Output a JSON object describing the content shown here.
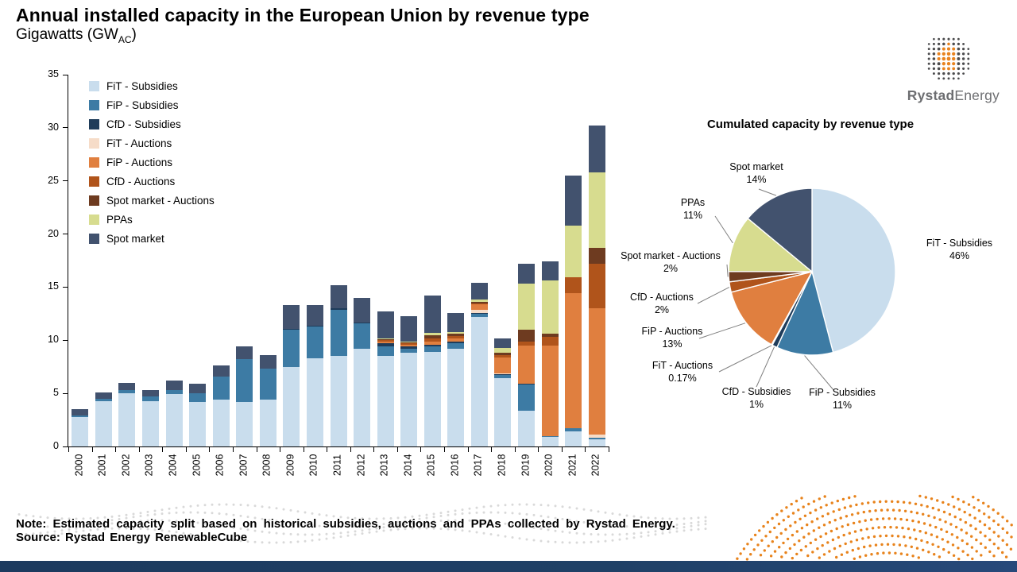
{
  "title": "Annual installed capacity in the European Union by revenue type",
  "subtitle": {
    "prefix": "Gigawatts (GW",
    "subscript": "AC",
    "suffix": ")"
  },
  "brand": {
    "bold": "Rystad",
    "regular": "Energy"
  },
  "note_line": "Note: Estimated capacity split based on historical subsidies, auctions and PPAs collected by Rystad Energy.",
  "source_line": "Source: Rystad Energy RenewableCube",
  "chart_data": [
    {
      "type": "bar",
      "stacked": true,
      "unit": "GW",
      "ylim": [
        0,
        35
      ],
      "yticks": [
        0,
        5,
        10,
        15,
        20,
        25,
        30,
        35
      ],
      "legend_position": "upper-left-inside",
      "categories": [
        "2000",
        "2001",
        "2002",
        "2003",
        "2004",
        "2005",
        "2006",
        "2007",
        "2008",
        "2009",
        "2010",
        "2011",
        "2012",
        "2013",
        "2014",
        "2015",
        "2016",
        "2017",
        "2018",
        "2019",
        "2020",
        "2021",
        "2022"
      ],
      "series": [
        {
          "name": "FiT - Subsidies",
          "color": "#c9dded",
          "values": [
            2.8,
            4.3,
            5.0,
            4.3,
            4.9,
            4.2,
            4.4,
            4.2,
            4.4,
            7.5,
            8.3,
            8.5,
            9.2,
            8.5,
            8.8,
            8.9,
            9.2,
            12.2,
            6.4,
            3.4,
            0.9,
            1.4,
            0.7
          ]
        },
        {
          "name": "FiP - Subsidies",
          "color": "#3d7ba4",
          "values": [
            0.1,
            0.2,
            0.3,
            0.4,
            0.4,
            0.8,
            2.2,
            4.0,
            2.9,
            3.5,
            3.0,
            4.4,
            2.4,
            0.9,
            0.4,
            0.5,
            0.5,
            0.3,
            0.3,
            2.4,
            0.1,
            0.3,
            0.1
          ]
        },
        {
          "name": "CfD - Subsidies",
          "color": "#1f3c5a",
          "values": [
            0,
            0,
            0,
            0,
            0,
            0,
            0,
            0,
            0,
            0.1,
            0.1,
            0.1,
            0.1,
            0.3,
            0.2,
            0.2,
            0.2,
            0.1,
            0.1,
            0.1,
            0,
            0,
            0
          ]
        },
        {
          "name": "FiT - Auctions",
          "color": "#f6dcc8",
          "values": [
            0,
            0,
            0,
            0,
            0,
            0,
            0,
            0,
            0,
            0,
            0,
            0,
            0,
            0,
            0,
            0,
            0,
            0.3,
            0.1,
            0,
            0,
            0,
            0.3
          ]
        },
        {
          "name": "FiP - Auctions",
          "color": "#e07f3f",
          "values": [
            0,
            0,
            0,
            0,
            0,
            0,
            0,
            0,
            0,
            0,
            0,
            0,
            0,
            0.2,
            0.2,
            0.3,
            0.3,
            0.5,
            1.5,
            3.6,
            8.5,
            12.7,
            11.9
          ]
        },
        {
          "name": "CfD - Auctions",
          "color": "#b0541b",
          "values": [
            0,
            0,
            0,
            0,
            0,
            0,
            0,
            0,
            0,
            0,
            0,
            0,
            0,
            0.1,
            0.1,
            0.3,
            0.2,
            0.1,
            0.2,
            0.4,
            0.8,
            1.5,
            4.2
          ]
        },
        {
          "name": "Spot market - Auctions",
          "color": "#6e3b20",
          "values": [
            0,
            0,
            0,
            0,
            0,
            0,
            0,
            0,
            0,
            0,
            0,
            0,
            0,
            0.1,
            0.1,
            0.3,
            0.2,
            0.1,
            0.2,
            1.1,
            0.3,
            0,
            1.5
          ]
        },
        {
          "name": "PPAs",
          "color": "#d7dc8f",
          "values": [
            0,
            0,
            0,
            0,
            0,
            0,
            0,
            0,
            0,
            0,
            0,
            0,
            0,
            0.1,
            0.1,
            0.2,
            0.2,
            0.2,
            0.5,
            4.3,
            5.0,
            4.9,
            7.1
          ]
        },
        {
          "name": "Spot market",
          "color": "#42526e",
          "values": [
            0.6,
            0.6,
            0.7,
            0.6,
            0.9,
            0.9,
            1.0,
            1.2,
            1.3,
            2.2,
            1.9,
            2.2,
            2.3,
            2.5,
            2.4,
            3.5,
            1.8,
            1.6,
            0.9,
            1.9,
            1.8,
            4.7,
            4.4
          ]
        }
      ]
    },
    {
      "type": "pie",
      "title": "Cumulated capacity by revenue type",
      "legend_position": "labels-around",
      "slices": [
        {
          "label": "FiT - Subsidies",
          "pct": 46,
          "pct_label": "46%",
          "color": "#c9dded"
        },
        {
          "label": "FiP - Subsidies",
          "pct": 11,
          "pct_label": "11%",
          "color": "#3d7ba4"
        },
        {
          "label": "CfD - Subsidies",
          "pct": 1,
          "pct_label": "1%",
          "color": "#1f3c5a"
        },
        {
          "label": "FiT - Auctions",
          "pct": 0.17,
          "pct_label": "0.17%",
          "color": "#f6dcc8"
        },
        {
          "label": "FiP - Auctions",
          "pct": 13,
          "pct_label": "13%",
          "color": "#e07f3f"
        },
        {
          "label": "CfD - Auctions",
          "pct": 2,
          "pct_label": "2%",
          "color": "#b0541b"
        },
        {
          "label": "Spot market - Auctions",
          "pct": 2,
          "pct_label": "2%",
          "color": "#6e3b20"
        },
        {
          "label": "PPAs",
          "pct": 11,
          "pct_label": "11%",
          "color": "#d7dc8f"
        },
        {
          "label": "Spot market",
          "pct": 14,
          "pct_label": "14%",
          "color": "#42526e"
        }
      ]
    }
  ]
}
